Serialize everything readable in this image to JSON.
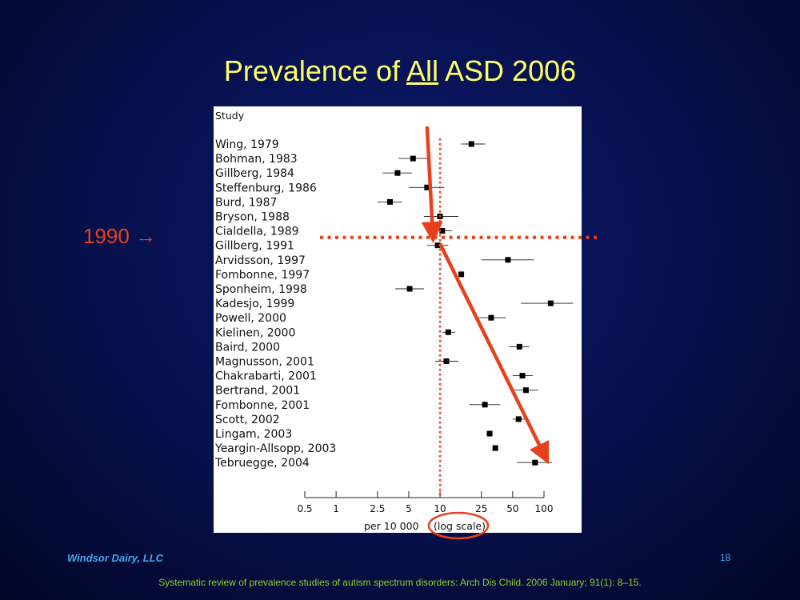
{
  "slide": {
    "title_pre": "Prevalence of ",
    "title_emph": "All",
    "title_post": " ASD 2006",
    "annotation_year": "1990 →",
    "footer_left": "Windsor Dairy, LLC",
    "page_number": "18",
    "citation": "Systematic review of prevalence studies of autism spectrum disorders:  Arch Dis Child. 2006 January; 91(1): 8–15."
  },
  "colors": {
    "title": "#ffff66",
    "annotation": "#e8401c",
    "footer": "#3fa9f5",
    "citation": "#8fd12a",
    "marker": "#000000"
  },
  "chart_data": {
    "type": "forest",
    "header": "Study",
    "xlabel_pre": "per 10 000 ",
    "xlabel_circled": "(log scale)",
    "x_scale": "log",
    "xlim": [
      0.5,
      100
    ],
    "x_ticks": [
      0.5,
      1,
      2.5,
      5,
      10,
      25,
      50,
      100
    ],
    "x_tick_labels": [
      "0.5",
      "1",
      "2.5",
      "5",
      "10",
      "25",
      "50",
      "100"
    ],
    "reference_line_x": 10,
    "reference_line_study": "Gillberg, 1991",
    "trend_arrows": [
      {
        "from_study": "Wing, 1979",
        "from_x": 7.5,
        "to_study": "Cialdella, 1989",
        "to_x": 8.5
      },
      {
        "from_study": "Gillberg, 1991",
        "from_x": 10,
        "to_study": "Yeargin-Allsopp, 2003",
        "to_x": 100
      }
    ],
    "studies": [
      {
        "label": "Wing, 1979",
        "estimate": 20,
        "ci": [
          16,
          27
        ]
      },
      {
        "label": "Bohman, 1983",
        "estimate": 5.5,
        "ci": [
          4,
          8
        ]
      },
      {
        "label": "Gillberg, 1984",
        "estimate": 3.9,
        "ci": [
          2.8,
          5.4
        ]
      },
      {
        "label": "Steffenburg, 1986",
        "estimate": 7.5,
        "ci": [
          5,
          11
        ]
      },
      {
        "label": "Burd, 1987",
        "estimate": 3.3,
        "ci": [
          2.5,
          4.3
        ]
      },
      {
        "label": "Bryson, 1988",
        "estimate": 10,
        "ci": [
          7,
          15
        ]
      },
      {
        "label": "Cialdella, 1989",
        "estimate": 10.5,
        "ci": [
          8.5,
          13
        ]
      },
      {
        "label": "Gillberg, 1991",
        "estimate": 9.5,
        "ci": [
          7.5,
          12
        ]
      },
      {
        "label": "Arvidsson, 1997",
        "estimate": 45,
        "ci": [
          25,
          80
        ]
      },
      {
        "label": "Fombonne, 1997",
        "estimate": 16,
        "ci": [
          15,
          17
        ]
      },
      {
        "label": "Sponheim, 1998",
        "estimate": 5.1,
        "ci": [
          3.7,
          7
        ]
      },
      {
        "label": "Kadesjo, 1999",
        "estimate": 116,
        "ci": [
          60,
          190
        ]
      },
      {
        "label": "Powell, 2000",
        "estimate": 31,
        "ci": [
          22,
          43
        ]
      },
      {
        "label": "Kielinen, 2000",
        "estimate": 12,
        "ci": [
          10.5,
          14
        ]
      },
      {
        "label": "Baird, 2000",
        "estimate": 58,
        "ci": [
          46,
          72
        ]
      },
      {
        "label": "Magnusson, 2001",
        "estimate": 11.5,
        "ci": [
          9,
          15
        ]
      },
      {
        "label": "Chakrabarti, 2001",
        "estimate": 62,
        "ci": [
          50,
          78
        ]
      },
      {
        "label": "Bertrand, 2001",
        "estimate": 67,
        "ci": [
          52,
          88
        ]
      },
      {
        "label": "Fombonne, 2001",
        "estimate": 27,
        "ci": [
          19,
          38
        ]
      },
      {
        "label": "Scott, 2002",
        "estimate": 57,
        "ci": [
          50,
          66
        ]
      },
      {
        "label": "Lingam, 2003",
        "estimate": 30,
        "ci": [
          28,
          32
        ]
      },
      {
        "label": "Yeargin-Allsopp, 2003",
        "estimate": 34,
        "ci": [
          32,
          36
        ]
      },
      {
        "label": "Tebruegge, 2004",
        "estimate": 82,
        "ci": [
          55,
          120
        ]
      }
    ]
  }
}
